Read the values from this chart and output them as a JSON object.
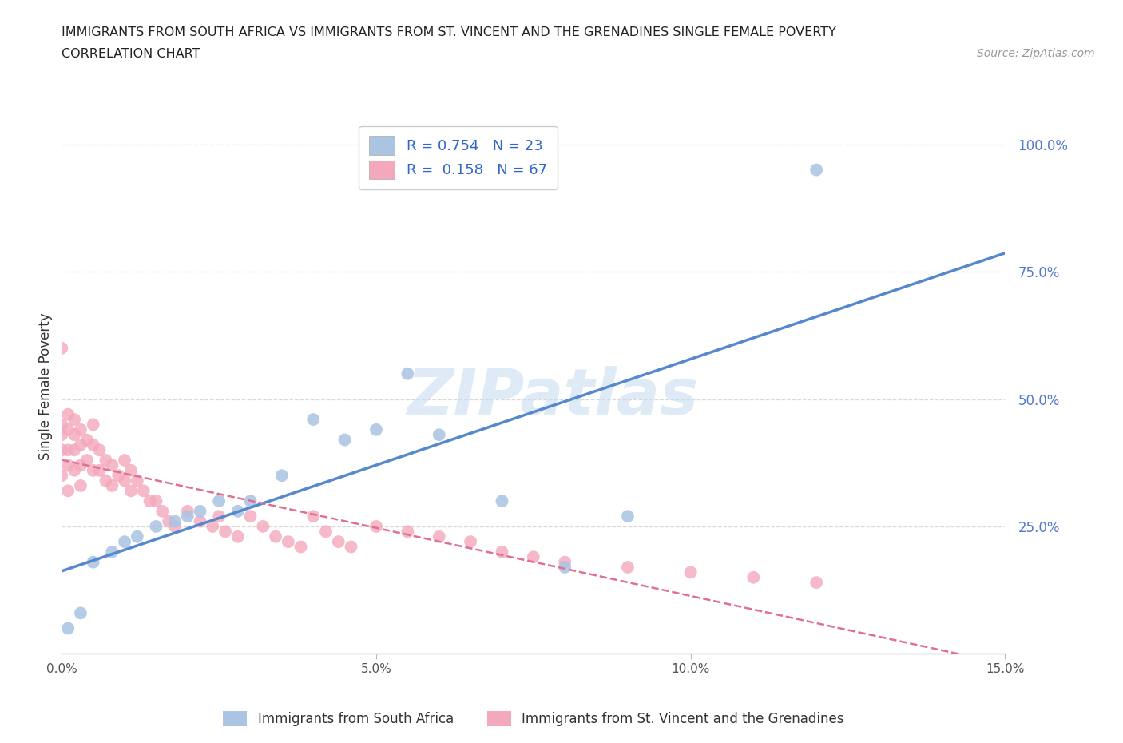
{
  "title_line1": "IMMIGRANTS FROM SOUTH AFRICA VS IMMIGRANTS FROM ST. VINCENT AND THE GRENADINES SINGLE FEMALE POVERTY",
  "title_line2": "CORRELATION CHART",
  "source": "Source: ZipAtlas.com",
  "ylabel": "Single Female Poverty",
  "xmin": 0.0,
  "xmax": 0.15,
  "ymin": 0.0,
  "ymax": 1.05,
  "ytick_positions": [
    0.25,
    0.5,
    0.75,
    1.0
  ],
  "ytick_labels": [
    "25.0%",
    "50.0%",
    "75.0%",
    "100.0%"
  ],
  "xtick_positions": [
    0.0,
    0.05,
    0.1,
    0.15
  ],
  "xtick_labels": [
    "0.0%",
    "5.0%",
    "10.0%",
    "15.0%"
  ],
  "blue_r": 0.754,
  "blue_n": 23,
  "pink_r": 0.158,
  "pink_n": 67,
  "blue_color": "#aac4e2",
  "pink_color": "#f4a8bc",
  "blue_line_color": "#5588cc",
  "pink_line_color": "#e07090",
  "grid_color": "#d8d8d8",
  "background_color": "#ffffff",
  "watermark_color": "#c8ddf0",
  "blue_scatter_x": [
    0.001,
    0.003,
    0.005,
    0.008,
    0.01,
    0.012,
    0.015,
    0.018,
    0.02,
    0.022,
    0.025,
    0.028,
    0.03,
    0.035,
    0.04,
    0.045,
    0.05,
    0.055,
    0.06,
    0.07,
    0.08,
    0.09,
    0.12
  ],
  "blue_scatter_y": [
    0.05,
    0.08,
    0.18,
    0.2,
    0.22,
    0.23,
    0.25,
    0.26,
    0.27,
    0.28,
    0.3,
    0.28,
    0.3,
    0.35,
    0.46,
    0.42,
    0.44,
    0.55,
    0.43,
    0.3,
    0.17,
    0.27,
    0.95
  ],
  "pink_scatter_x": [
    0.0,
    0.0,
    0.0,
    0.0,
    0.0,
    0.001,
    0.001,
    0.001,
    0.001,
    0.001,
    0.002,
    0.002,
    0.002,
    0.002,
    0.003,
    0.003,
    0.003,
    0.003,
    0.004,
    0.004,
    0.005,
    0.005,
    0.005,
    0.006,
    0.006,
    0.007,
    0.007,
    0.008,
    0.008,
    0.009,
    0.01,
    0.01,
    0.011,
    0.011,
    0.012,
    0.013,
    0.014,
    0.015,
    0.016,
    0.017,
    0.018,
    0.02,
    0.022,
    0.024,
    0.025,
    0.026,
    0.028,
    0.03,
    0.032,
    0.034,
    0.036,
    0.038,
    0.04,
    0.042,
    0.044,
    0.046,
    0.05,
    0.055,
    0.06,
    0.065,
    0.07,
    0.075,
    0.08,
    0.09,
    0.1,
    0.11,
    0.12
  ],
  "pink_scatter_y": [
    0.6,
    0.45,
    0.43,
    0.4,
    0.35,
    0.47,
    0.44,
    0.4,
    0.37,
    0.32,
    0.46,
    0.43,
    0.4,
    0.36,
    0.44,
    0.41,
    0.37,
    0.33,
    0.42,
    0.38,
    0.45,
    0.41,
    0.36,
    0.4,
    0.36,
    0.38,
    0.34,
    0.37,
    0.33,
    0.35,
    0.38,
    0.34,
    0.36,
    0.32,
    0.34,
    0.32,
    0.3,
    0.3,
    0.28,
    0.26,
    0.25,
    0.28,
    0.26,
    0.25,
    0.27,
    0.24,
    0.23,
    0.27,
    0.25,
    0.23,
    0.22,
    0.21,
    0.27,
    0.24,
    0.22,
    0.21,
    0.25,
    0.24,
    0.23,
    0.22,
    0.2,
    0.19,
    0.18,
    0.17,
    0.16,
    0.15,
    0.14
  ]
}
